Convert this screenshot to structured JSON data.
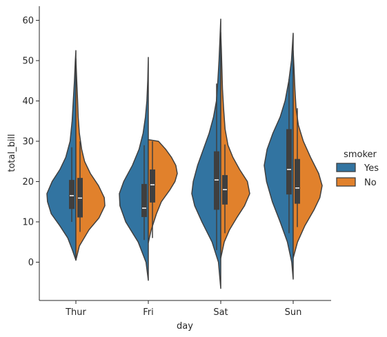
{
  "chart_data": {
    "type": "violin",
    "split": true,
    "xlabel": "day",
    "ylabel": "total_bill",
    "ylim": [
      -9.5,
      63.5
    ],
    "yticks": [
      0,
      10,
      20,
      30,
      40,
      50,
      60
    ],
    "categories": [
      "Thur",
      "Fri",
      "Sat",
      "Sun"
    ],
    "legend": {
      "title": "smoker",
      "placement": "right"
    },
    "series": [
      {
        "name": "Yes",
        "color": "#3274a1",
        "side": "left",
        "groups": [
          {
            "category": "Thur",
            "range": [
              0.5,
              52.5
            ],
            "profile": [
              [
                0.5,
                0.0
              ],
              [
                3,
                0.12
              ],
              [
                6,
                0.28
              ],
              [
                9,
                0.55
              ],
              [
                12,
                0.85
              ],
              [
                15,
                0.98
              ],
              [
                17,
                1.0
              ],
              [
                20,
                0.82
              ],
              [
                23,
                0.55
              ],
              [
                26,
                0.35
              ],
              [
                30,
                0.2
              ],
              [
                35,
                0.13
              ],
              [
                40,
                0.09
              ],
              [
                45,
                0.05
              ],
              [
                50,
                0.02
              ],
              [
                52.5,
                0.0
              ]
            ],
            "whisker": [
              10,
              28.5
            ],
            "q1": 13.2,
            "median": 16.5,
            "q3": 20.4
          },
          {
            "category": "Fri",
            "range": [
              -4.5,
              50.8
            ],
            "profile": [
              [
                -4.5,
                0.0
              ],
              [
                0,
                0.08
              ],
              [
                5,
                0.35
              ],
              [
                10,
                0.78
              ],
              [
                14,
                0.98
              ],
              [
                17,
                1.0
              ],
              [
                20,
                0.85
              ],
              [
                24,
                0.55
              ],
              [
                28,
                0.32
              ],
              [
                32,
                0.18
              ],
              [
                36,
                0.1
              ],
              [
                40,
                0.05
              ],
              [
                45,
                0.02
              ],
              [
                50.8,
                0.0
              ]
            ],
            "whisker": [
              5.5,
              29
            ],
            "q1": 11.2,
            "median": 13.4,
            "q3": 19.4
          },
          {
            "category": "Sat",
            "range": [
              -6.5,
              60.3
            ],
            "profile": [
              [
                -6.5,
                0.0
              ],
              [
                0,
                0.08
              ],
              [
                5,
                0.3
              ],
              [
                10,
                0.65
              ],
              [
                14,
                0.9
              ],
              [
                17,
                1.0
              ],
              [
                20,
                0.95
              ],
              [
                24,
                0.8
              ],
              [
                28,
                0.6
              ],
              [
                32,
                0.4
              ],
              [
                36,
                0.25
              ],
              [
                40,
                0.15
              ],
              [
                45,
                0.1
              ],
              [
                50,
                0.06
              ],
              [
                55,
                0.03
              ],
              [
                60.3,
                0.0
              ]
            ],
            "whisker": [
              3,
              44.3
            ],
            "q1": 13,
            "median": 20.4,
            "q3": 27.5
          },
          {
            "category": "Sun",
            "range": [
              -4.2,
              56.8
            ],
            "profile": [
              [
                -4.2,
                0.0
              ],
              [
                0,
                0.05
              ],
              [
                5,
                0.2
              ],
              [
                10,
                0.45
              ],
              [
                15,
                0.72
              ],
              [
                20,
                0.92
              ],
              [
                24,
                1.0
              ],
              [
                28,
                0.9
              ],
              [
                32,
                0.7
              ],
              [
                36,
                0.45
              ],
              [
                40,
                0.28
              ],
              [
                45,
                0.15
              ],
              [
                50,
                0.06
              ],
              [
                56.8,
                0.0
              ]
            ],
            "whisker": [
              7.2,
              45.4
            ],
            "q1": 16.8,
            "median": 23,
            "q3": 33
          }
        ]
      },
      {
        "name": "No",
        "color": "#e1812c",
        "side": "right",
        "groups": [
          {
            "category": "Thur",
            "range": [
              0.5,
              50.5
            ],
            "profile": [
              [
                0.5,
                0.0
              ],
              [
                4,
                0.12
              ],
              [
                8,
                0.45
              ],
              [
                11,
                0.8
              ],
              [
                14,
                1.0
              ],
              [
                16,
                0.98
              ],
              [
                19,
                0.78
              ],
              [
                22,
                0.5
              ],
              [
                25,
                0.3
              ],
              [
                28,
                0.2
              ],
              [
                32,
                0.12
              ],
              [
                36,
                0.08
              ],
              [
                40,
                0.06
              ],
              [
                45,
                0.03
              ],
              [
                50.5,
                0.0
              ]
            ],
            "whisker": [
              7.5,
              30
            ],
            "q1": 11.1,
            "median": 15.9,
            "q3": 20.9
          },
          {
            "category": "Fri",
            "range": [
              4.8,
              30.4
            ],
            "profile": [
              [
                4.8,
                0.0
              ],
              [
                8,
                0.1
              ],
              [
                12,
                0.28
              ],
              [
                15,
                0.45
              ],
              [
                18,
                0.75
              ],
              [
                20,
                0.92
              ],
              [
                22,
                1.0
              ],
              [
                24,
                0.95
              ],
              [
                26,
                0.8
              ],
              [
                28,
                0.6
              ],
              [
                30,
                0.35
              ],
              [
                30.4,
                0.0
              ]
            ],
            "whisker": [
              6,
              30
            ],
            "q1": 14.8,
            "median": 19.2,
            "q3": 23
          },
          {
            "category": "Sat",
            "range": [
              1,
              57
            ],
            "profile": [
              [
                1,
                0.0
              ],
              [
                5,
                0.12
              ],
              [
                8,
                0.3
              ],
              [
                11,
                0.55
              ],
              [
                14,
                0.82
              ],
              [
                17,
                1.0
              ],
              [
                20,
                0.92
              ],
              [
                23,
                0.65
              ],
              [
                26,
                0.42
              ],
              [
                29,
                0.25
              ],
              [
                33,
                0.15
              ],
              [
                38,
                0.1
              ],
              [
                43,
                0.06
              ],
              [
                48,
                0.04
              ],
              [
                53,
                0.02
              ],
              [
                57,
                0.0
              ]
            ],
            "whisker": [
              7.2,
              29.2
            ],
            "q1": 14.3,
            "median": 18,
            "q3": 21.6
          },
          {
            "category": "Sun",
            "range": [
              1,
              52.5
            ],
            "profile": [
              [
                1,
                0.0
              ],
              [
                5,
                0.15
              ],
              [
                9,
                0.4
              ],
              [
                13,
                0.72
              ],
              [
                16,
                0.92
              ],
              [
                19,
                1.0
              ],
              [
                22,
                0.88
              ],
              [
                26,
                0.6
              ],
              [
                30,
                0.35
              ],
              [
                34,
                0.18
              ],
              [
                38,
                0.1
              ],
              [
                43,
                0.06
              ],
              [
                48,
                0.03
              ],
              [
                52.5,
                0.0
              ]
            ],
            "whisker": [
              8.7,
              38.2
            ],
            "q1": 14.5,
            "median": 18.4,
            "q3": 25.6
          }
        ]
      }
    ]
  }
}
